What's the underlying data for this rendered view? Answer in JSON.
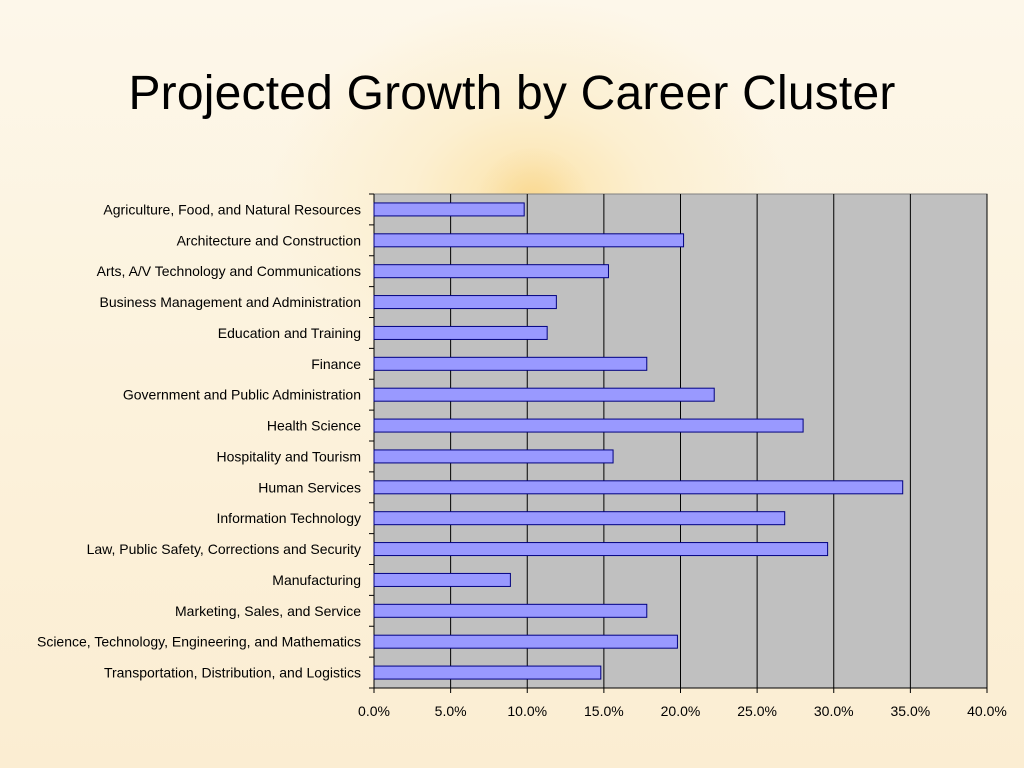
{
  "slide": {
    "title": "Projected Growth by Career Cluster"
  },
  "colors": {
    "bar_fill": "#9999ff",
    "bar_stroke": "#000080",
    "plot_bg": "#c0c0c0",
    "grid": "#000000"
  },
  "chart_data": {
    "type": "bar",
    "orientation": "horizontal",
    "categories": [
      "Agriculture, Food, and Natural Resources",
      "Architecture and Construction",
      "Arts, A/V Technology and Communications",
      "Business Management and Administration",
      "Education and Training",
      "Finance",
      "Government and Public Administration",
      "Health Science",
      "Hospitality and Tourism",
      "Human Services",
      "Information Technology",
      "Law, Public Safety, Corrections and Security",
      "Manufacturing",
      "Marketing, Sales, and Service",
      "Science, Technology, Engineering, and Mathematics",
      "Transportation, Distribution, and Logistics"
    ],
    "values": [
      9.8,
      20.2,
      15.3,
      11.9,
      11.3,
      17.8,
      22.2,
      28.0,
      15.6,
      34.5,
      26.8,
      29.6,
      8.9,
      17.8,
      19.8,
      14.8
    ],
    "xlim": [
      0,
      40
    ],
    "xticks": [
      "0.0%",
      "5.0%",
      "10.0%",
      "15.0%",
      "20.0%",
      "25.0%",
      "30.0%",
      "35.0%",
      "40.0%"
    ],
    "grid": "vertical"
  }
}
